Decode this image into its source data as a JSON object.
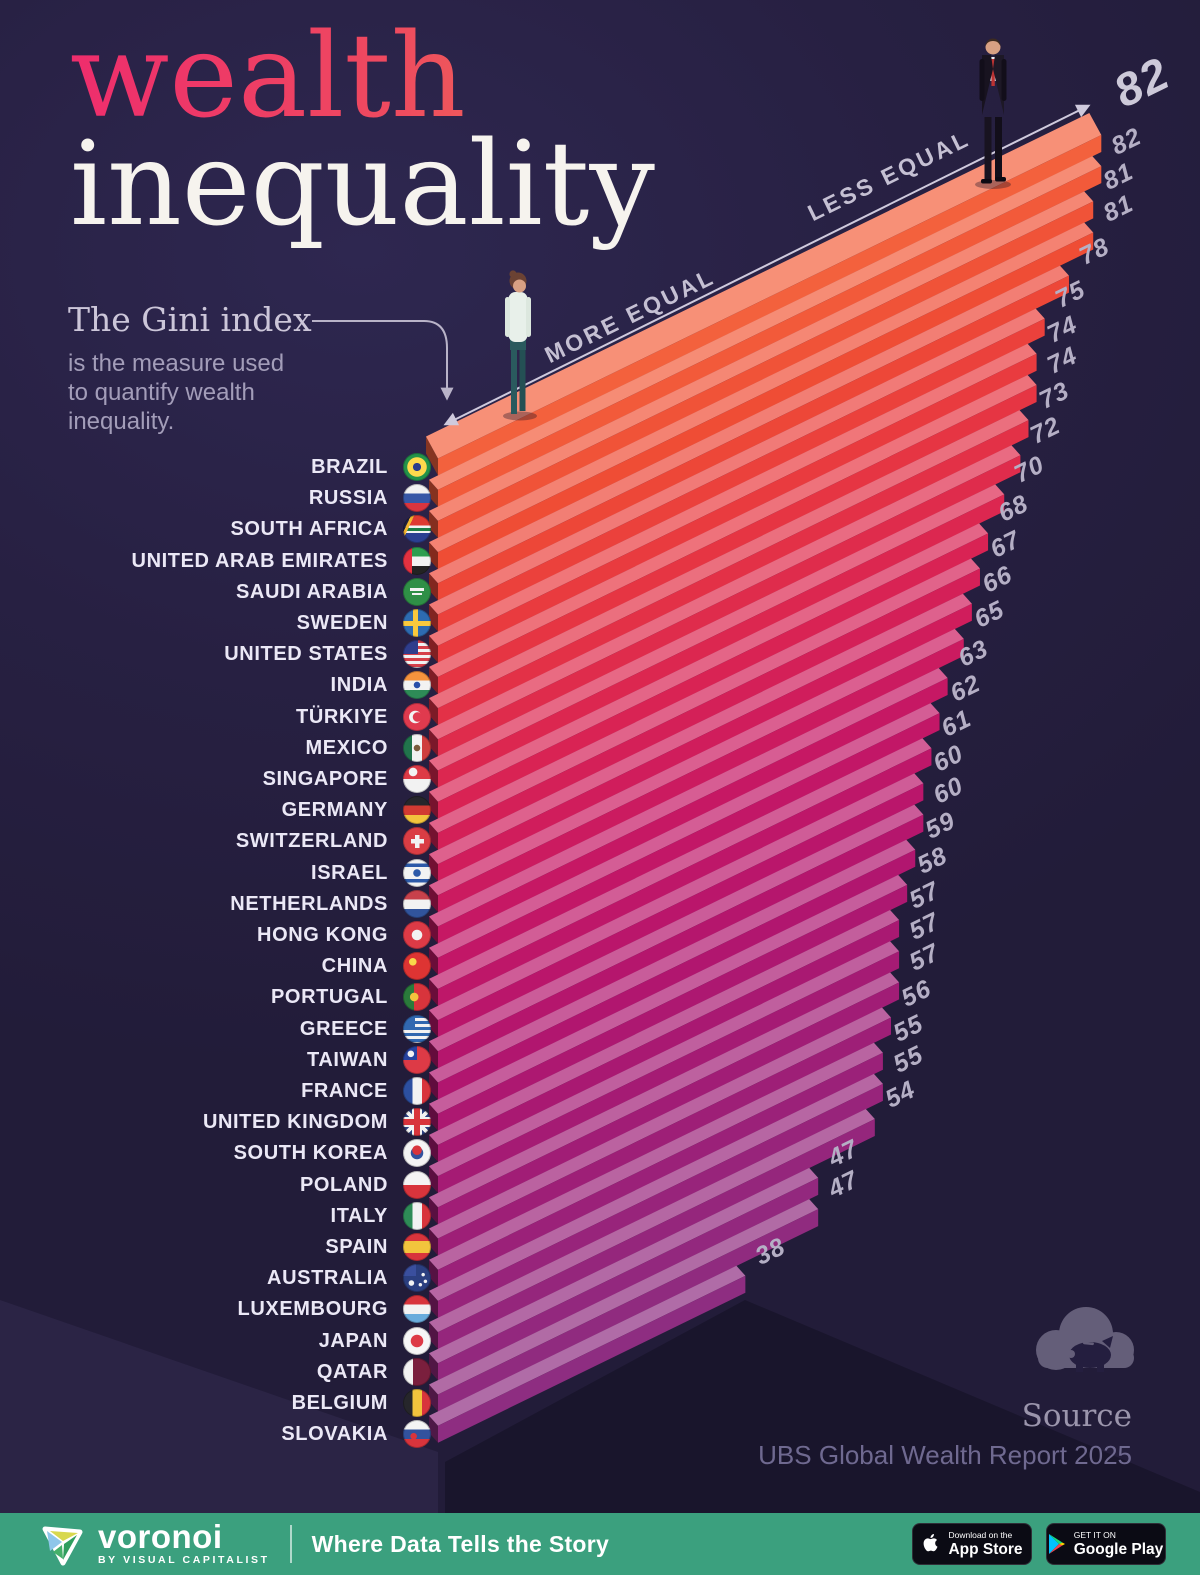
{
  "page": {
    "background": "#272042",
    "footer_green": "#3ba07e",
    "bar_gradient": [
      "#f3613d",
      "#8e2d81"
    ]
  },
  "title": {
    "line1": "wealth",
    "line2": "inequality"
  },
  "subtitle": {
    "lead": "The Gini index",
    "lines": [
      "is the measure used",
      "to quantify wealth",
      "inequality."
    ]
  },
  "axis": {
    "more": "MORE EQUAL",
    "less": "LESS EQUAL"
  },
  "source": {
    "label": "Source",
    "text": "UBS Global Wealth Report 2025"
  },
  "footer": {
    "brand": "voronoi",
    "byline": "BY VISUAL CAPITALIST",
    "tagline": "Where Data Tells the Story",
    "appstore_top": "Download on the",
    "appstore_bottom": "App Store",
    "googleplay_top": "GET IT ON",
    "googleplay_bottom": "Google Play"
  },
  "chart_data": {
    "type": "bar",
    "title": "wealth inequality",
    "metric": "Gini index (measure used to quantify wealth inequality)",
    "orientation": "isometric horizontal bars, longest (least equal) on top",
    "value_range": [
      38,
      82
    ],
    "annotations": [
      "MORE EQUAL",
      "LESS EQUAL"
    ],
    "legend_position": "none",
    "color_scale_top_to_bottom": [
      "#f3613d",
      "#c41766",
      "#8e2d81"
    ],
    "categories": [
      "BRAZIL",
      "RUSSIA",
      "SOUTH AFRICA",
      "UNITED ARAB EMIRATES",
      "SAUDI ARABIA",
      "SWEDEN",
      "UNITED STATES",
      "INDIA",
      "TÜRKIYE",
      "MEXICO",
      "SINGAPORE",
      "GERMANY",
      "SWITZERLAND",
      "ISRAEL",
      "NETHERLANDS",
      "HONG KONG",
      "CHINA",
      "PORTUGAL",
      "GREECE",
      "TAIWAN",
      "FRANCE",
      "UNITED KINGDOM",
      "SOUTH KOREA",
      "POLAND",
      "ITALY",
      "SPAIN",
      "AUSTRALIA",
      "LUXEMBOURG",
      "JAPAN",
      "QATAR",
      "BELGIUM",
      "SLOVAKIA"
    ],
    "values": [
      82,
      82,
      81,
      81,
      78,
      75,
      74,
      74,
      73,
      72,
      70,
      68,
      67,
      66,
      65,
      63,
      62,
      61,
      60,
      60,
      59,
      58,
      57,
      57,
      57,
      56,
      55,
      55,
      54,
      47,
      47,
      38
    ]
  },
  "countries": [
    {
      "name": "BRAZIL",
      "value": 82,
      "flag": "brazil-flag",
      "flag_css": "radial-gradient(circle at 50% 50%, #2b3c8c 0 4px, #ffd94d 4px 9.5px, rgba(0,0,0,0) 10px), #23934a"
    },
    {
      "name": "RUSSIA",
      "value": 82,
      "flag": "russia-flag",
      "flag_css": "linear-gradient(180deg, #f2f2f2 0 34%, #3757a6 34% 67%, #d8353f 67%)"
    },
    {
      "name": "SOUTH AFRICA",
      "value": 81,
      "flag": "south-africa-flag",
      "flag_css": "linear-gradient(115deg, #20213f 0 20%, #f2b52e 20% 28%, rgba(0,0,0,0) 28%), linear-gradient(180deg, #de3a31 0 38%, #f2f2f2 38% 46%, #1c7e44 46% 58%, #f2f2f2 58% 64%, #2b3f92 64%)"
    },
    {
      "name": "UNITED ARAB EMIRATES",
      "value": 81,
      "flag": "uae-flag",
      "flag_css": "linear-gradient(90deg, #e33140 0 32%, rgba(0,0,0,0) 32%), linear-gradient(180deg, #2e9e4f 0 34%, #f2f2f2 34% 67%, #232323 67%)"
    },
    {
      "name": "SAUDI ARABIA",
      "value": 78,
      "flag": "saudi-arabia-flag",
      "flag_css": "linear-gradient(#f2f2f2,#f2f2f2) 50% 42%/14px 3px no-repeat, linear-gradient(#f2f2f2,#f2f2f2) 50% 58%/10px 2px no-repeat, #2f8f46"
    },
    {
      "name": "SWEDEN",
      "value": 75,
      "flag": "sweden-flag",
      "flag_css": "linear-gradient(90deg, rgba(0,0,0,0) 0 35%, #f8c93d 35% 53%, rgba(0,0,0,0) 53%), linear-gradient(180deg, rgba(0,0,0,0) 0 42%, #f8c93d 42% 60%, rgba(0,0,0,0) 60%), #2d6bb1"
    },
    {
      "name": "UNITED STATES",
      "value": 74,
      "flag": "united-states-flag",
      "flag_css": "linear-gradient(#2f3d8c,#2f3d8c) 0 0/15px 14px no-repeat, repeating-linear-gradient(180deg, #d6404a 0 3px, #f2f2f2 3px 6px)"
    },
    {
      "name": "INDIA",
      "value": 74,
      "flag": "india-flag",
      "flag_css": "radial-gradient(circle, #2a4faa 0 3px, rgba(0,0,0,0) 3.5px), linear-gradient(180deg, #f5933d 0 34%, #f2f2f2 34% 67%, #2e8b57 67%)"
    },
    {
      "name": "TÜRKIYE",
      "value": 73,
      "flag": "turkiye-flag",
      "flag_css": "radial-gradient(circle at 52% 50%, #e03a4e 0 4.5px, rgba(0,0,0,0) 5px), radial-gradient(circle at 44% 50%, #f2f2f2 0 6px, rgba(0,0,0,0) 6.5px), #e03a4e"
    },
    {
      "name": "MEXICO",
      "value": 72,
      "flag": "mexico-flag",
      "flag_css": "radial-gradient(circle, #7a5c3e 0 3px, rgba(0,0,0,0) 3.5px), linear-gradient(90deg, #21744c 0 33%, #f2f2f2 33% 67%, #cf3e3e 67%)"
    },
    {
      "name": "SINGAPORE",
      "value": 70,
      "flag": "singapore-flag",
      "flag_css": "radial-gradient(circle at 36% 25%, #f2f2f2 0 4px, rgba(0,0,0,0) 4.5px), linear-gradient(180deg, #dd3a46 0 50%, #f2f2f2 50%)"
    },
    {
      "name": "GERMANY",
      "value": 68,
      "flag": "germany-flag",
      "flag_css": "linear-gradient(180deg, #26262b 0 34%, #d13a32 34% 67%, #f2c43d 67%)"
    },
    {
      "name": "SWITZERLAND",
      "value": 67,
      "flag": "switzerland-flag",
      "flag_css": "linear-gradient(#f2f2f2,#f2f2f2) 50% 50%/4.5px 13px no-repeat, linear-gradient(#f2f2f2,#f2f2f2) 50% 50%/13px 4.5px no-repeat, #da3d44"
    },
    {
      "name": "ISRAEL",
      "value": 66,
      "flag": "israel-flag",
      "flag_css": "radial-gradient(circle, #2c59a8 0 3.5px, rgba(0,0,0,0) 4px), linear-gradient(180deg, #f2f2f2 0 16%, #2c59a8 16% 28%, #f2f2f2 28% 72%, #2c59a8 72% 84%, #f2f2f2 84%)"
    },
    {
      "name": "NETHERLANDS",
      "value": 65,
      "flag": "netherlands-flag",
      "flag_css": "linear-gradient(180deg, #c8414b 0 34%, #f2f2f2 34% 67%, #31549c 67%)"
    },
    {
      "name": "HONG KONG",
      "value": 63,
      "flag": "hong-kong-flag",
      "flag_css": "radial-gradient(circle, #f2f2f2 0 5px, rgba(0,0,0,0) 5.5px), #dd3a46"
    },
    {
      "name": "CHINA",
      "value": 62,
      "flag": "china-flag",
      "flag_css": "radial-gradient(circle at 35% 35%, #f8d84a 0 3.5px, rgba(0,0,0,0) 4px), #de3433"
    },
    {
      "name": "PORTUGAL",
      "value": 61,
      "flag": "portugal-flag",
      "flag_css": "radial-gradient(circle at 40% 50%, #f2c43d 0 4px, rgba(0,0,0,0) 4.5px), linear-gradient(90deg, #2a7a3b 0 40%, #d8343c 40%)"
    },
    {
      "name": "GREECE",
      "value": 60,
      "flag": "greece-flag",
      "flag_css": "linear-gradient(#3168b0,#3168b0) 0 0/12px 12px no-repeat, repeating-linear-gradient(180deg, #3168b0 0 3px, #f2f2f2 3px 6px)"
    },
    {
      "name": "TAIWAN",
      "value": 60,
      "flag": "taiwan-flag",
      "flag_css": "radial-gradient(circle at 28% 28%, #f2f2f2 0 3px, rgba(0,0,0,0) 3.5px), linear-gradient(#2743a0,#2743a0) 0 0/14px 14px no-repeat, #dd3a46"
    },
    {
      "name": "FRANCE",
      "value": 59,
      "flag": "france-flag",
      "flag_css": "linear-gradient(90deg, #2c4fa0 0 34%, #f2f2f2 34% 67%, #d8343c 67%)"
    },
    {
      "name": "UNITED KINGDOM",
      "value": 58,
      "flag": "united-kingdom-flag",
      "flag_css": "linear-gradient(180deg, rgba(0,0,0,0) 0 40%, #d8343c 40% 60%, rgba(0,0,0,0) 60%), linear-gradient(90deg, rgba(0,0,0,0) 0 40%, #d8343c 40% 60%, rgba(0,0,0,0) 60%), linear-gradient(180deg, rgba(0,0,0,0) 0 32%, #f2f2f2 32% 68%, rgba(0,0,0,0) 68%), linear-gradient(90deg, rgba(0,0,0,0) 0 32%, #f2f2f2 32% 68%, rgba(0,0,0,0) 68%), linear-gradient(45deg, rgba(0,0,0,0) 45%, #f2f2f2 45% 55%, rgba(0,0,0,0) 55%), linear-gradient(135deg, rgba(0,0,0,0) 45%, #f2f2f2 45% 55%, rgba(0,0,0,0) 55%), #2b3f80"
    },
    {
      "name": "SOUTH KOREA",
      "value": 57,
      "flag": "south-korea-flag",
      "flag_css": "radial-gradient(circle at 50% 40%, #d8343c 0 4.5px, rgba(0,0,0,0) 5px), radial-gradient(circle, #32529e 0 6px, rgba(0,0,0,0) 6.5px), #f4f4f4"
    },
    {
      "name": "POLAND",
      "value": 57,
      "flag": "poland-flag",
      "flag_css": "linear-gradient(180deg, #f4f4f4 0 50%, #d8343c 50%)"
    },
    {
      "name": "ITALY",
      "value": 57,
      "flag": "italy-flag",
      "flag_css": "linear-gradient(90deg, #2e8b57 0 34%, #f2f2f2 34% 67%, #d8343c 67%)"
    },
    {
      "name": "SPAIN",
      "value": 56,
      "flag": "spain-flag",
      "flag_css": "linear-gradient(180deg, #d8343c 0 28%, #f2c43d 28% 72%, #d8343c 72%)"
    },
    {
      "name": "AUSTRALIA",
      "value": 55,
      "flag": "australia-flag",
      "flag_css": "radial-gradient(circle at 72% 38%, #f2f2f2 0 1.5px, rgba(0,0,0,0) 2px), radial-gradient(circle at 80% 62%, #f2f2f2 0 1.5px, rgba(0,0,0,0) 2px), radial-gradient(circle at 62% 74%, #f2f2f2 0 1.5px, rgba(0,0,0,0) 2px), radial-gradient(circle at 30% 68%, #f2f2f2 0 2.5px, rgba(0,0,0,0) 3px), linear-gradient(#3a4f9e,#3a4f9e) 0 0/13px 12px no-repeat, #2b3f80"
    },
    {
      "name": "LUXEMBOURG",
      "value": 55,
      "flag": "luxembourg-flag",
      "flag_css": "linear-gradient(180deg, #d8343c 0 34%, #f2f2f2 34% 67%, #69acdc 67%)"
    },
    {
      "name": "JAPAN",
      "value": 54,
      "flag": "japan-flag",
      "flag_css": "radial-gradient(circle, #dd3a46 0 6px, rgba(0,0,0,0) 6.5px), #f6f6f6"
    },
    {
      "name": "QATAR",
      "value": 47,
      "flag": "qatar-flag",
      "flag_css": "linear-gradient(90deg, #f2f2f2 0 35%, #7a1f3d 35%)"
    },
    {
      "name": "BELGIUM",
      "value": 47,
      "flag": "belgium-flag",
      "flag_css": "linear-gradient(90deg, #26262b 0 34%, #f2c43d 34% 67%, #d8343c 67%)"
    },
    {
      "name": "SLOVAKIA",
      "value": 38,
      "flag": "slovakia-flag",
      "flag_css": "radial-gradient(circle at 38% 58%, #d8343c 0 3px, rgba(0,0,0,0) 3.5px), linear-gradient(180deg, #f4f4f4 0 34%, #32529e 34% 67%, #d8343c 67%)"
    }
  ]
}
